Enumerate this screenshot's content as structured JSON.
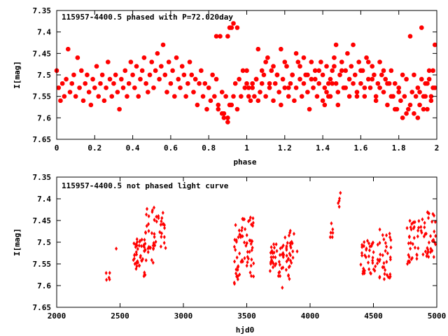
{
  "chart_data": [
    {
      "type": "scatter",
      "title": "115957-4400.5 phased with P=72.020day",
      "xlabel": "phase",
      "ylabel": "I[mag]",
      "xlim": [
        0,
        2
      ],
      "ylim": [
        7.35,
        7.65
      ],
      "y_inverted": true,
      "xticks": [
        "0",
        "0.2",
        "0.4",
        "0.6",
        "0.8",
        "1",
        "1.2",
        "1.4",
        "1.6",
        "1.8",
        "2"
      ],
      "yticks": [
        "7.35",
        "7.4",
        "7.45",
        "7.5",
        "7.55",
        "7.6",
        "7.65"
      ],
      "marker": "filled-octagon",
      "color": "#ff0000",
      "points_per_phase_cycle": [
        [
          0.0,
          7.49
        ],
        [
          0.01,
          7.53
        ],
        [
          0.02,
          7.56
        ],
        [
          0.03,
          7.52
        ],
        [
          0.04,
          7.55
        ],
        [
          0.05,
          7.51
        ],
        [
          0.06,
          7.44
        ],
        [
          0.07,
          7.54
        ],
        [
          0.08,
          7.52
        ],
        [
          0.09,
          7.5
        ],
        [
          0.1,
          7.55
        ],
        [
          0.11,
          7.46
        ],
        [
          0.12,
          7.53
        ],
        [
          0.13,
          7.49
        ],
        [
          0.14,
          7.56
        ],
        [
          0.15,
          7.52
        ],
        [
          0.16,
          7.5
        ],
        [
          0.17,
          7.54
        ],
        [
          0.18,
          7.57
        ],
        [
          0.19,
          7.51
        ],
        [
          0.2,
          7.53
        ],
        [
          0.21,
          7.48
        ],
        [
          0.22,
          7.55
        ],
        [
          0.23,
          7.52
        ],
        [
          0.24,
          7.5
        ],
        [
          0.25,
          7.56
        ],
        [
          0.26,
          7.53
        ],
        [
          0.27,
          7.47
        ],
        [
          0.28,
          7.51
        ],
        [
          0.29,
          7.55
        ],
        [
          0.3,
          7.52
        ],
        [
          0.31,
          7.5
        ],
        [
          0.32,
          7.54
        ],
        [
          0.33,
          7.58
        ],
        [
          0.34,
          7.51
        ],
        [
          0.35,
          7.53
        ],
        [
          0.36,
          7.49
        ],
        [
          0.37,
          7.55
        ],
        [
          0.38,
          7.52
        ],
        [
          0.39,
          7.47
        ],
        [
          0.4,
          7.5
        ],
        [
          0.41,
          7.53
        ],
        [
          0.42,
          7.48
        ],
        [
          0.43,
          7.55
        ],
        [
          0.44,
          7.51
        ],
        [
          0.45,
          7.49
        ],
        [
          0.46,
          7.46
        ],
        [
          0.47,
          7.52
        ],
        [
          0.48,
          7.54
        ],
        [
          0.49,
          7.5
        ],
        [
          0.5,
          7.47
        ],
        [
          0.51,
          7.53
        ],
        [
          0.52,
          7.49
        ],
        [
          0.53,
          7.45
        ],
        [
          0.54,
          7.51
        ],
        [
          0.55,
          7.48
        ],
        [
          0.56,
          7.43
        ],
        [
          0.57,
          7.5
        ],
        [
          0.58,
          7.54
        ],
        [
          0.59,
          7.47
        ],
        [
          0.6,
          7.52
        ],
        [
          0.61,
          7.49
        ],
        [
          0.62,
          7.55
        ],
        [
          0.63,
          7.46
        ],
        [
          0.64,
          7.51
        ],
        [
          0.65,
          7.53
        ],
        [
          0.66,
          7.48
        ],
        [
          0.67,
          7.5
        ],
        [
          0.68,
          7.55
        ],
        [
          0.69,
          7.52
        ],
        [
          0.7,
          7.47
        ],
        [
          0.71,
          7.5
        ],
        [
          0.72,
          7.54
        ],
        [
          0.73,
          7.51
        ],
        [
          0.74,
          7.57
        ],
        [
          0.75,
          7.52
        ],
        [
          0.76,
          7.49
        ],
        [
          0.77,
          7.55
        ],
        [
          0.78,
          7.52
        ],
        [
          0.79,
          7.58
        ],
        [
          0.8,
          7.53
        ],
        [
          0.81,
          7.56
        ],
        [
          0.82,
          7.5
        ],
        [
          0.83,
          7.55
        ],
        [
          0.84,
          7.51
        ],
        [
          0.85,
          7.58
        ],
        [
          0.86,
          7.41
        ],
        [
          0.87,
          7.54
        ],
        [
          0.88,
          7.59
        ],
        [
          0.89,
          7.55
        ],
        [
          0.9,
          7.6
        ],
        [
          0.91,
          7.57
        ],
        [
          0.92,
          7.39
        ],
        [
          0.93,
          7.55
        ],
        [
          0.94,
          7.52
        ],
        [
          0.95,
          7.58
        ],
        [
          0.96,
          7.51
        ],
        [
          0.97,
          7.55
        ],
        [
          0.98,
          7.49
        ],
        [
          0.99,
          7.53
        ]
      ],
      "note_points": [
        [
          0.84,
          7.41
        ],
        [
          0.9,
          7.41
        ],
        [
          0.91,
          7.39
        ],
        [
          0.93,
          7.38
        ],
        [
          0.95,
          7.39
        ],
        [
          0.87,
          7.59
        ],
        [
          0.88,
          7.6
        ],
        [
          0.9,
          7.61
        ],
        [
          0.92,
          7.57
        ],
        [
          0.85,
          7.57
        ],
        [
          1.0,
          7.52
        ],
        [
          1.01,
          7.55
        ],
        [
          1.03,
          7.53
        ],
        [
          1.05,
          7.51
        ],
        [
          1.06,
          7.56
        ],
        [
          1.08,
          7.49
        ],
        [
          1.1,
          7.47
        ],
        [
          1.12,
          7.52
        ],
        [
          1.14,
          7.48
        ],
        [
          1.16,
          7.5
        ],
        [
          1.18,
          7.44
        ],
        [
          1.2,
          7.47
        ],
        [
          1.22,
          7.53
        ],
        [
          1.24,
          7.5
        ],
        [
          1.26,
          7.45
        ],
        [
          1.28,
          7.48
        ],
        [
          1.3,
          7.46
        ],
        [
          1.32,
          7.5
        ],
        [
          1.34,
          7.47
        ],
        [
          1.36,
          7.51
        ],
        [
          1.38,
          7.49
        ],
        [
          1.4,
          7.56
        ],
        [
          1.41,
          7.57
        ],
        [
          1.42,
          7.54
        ],
        [
          1.43,
          7.52
        ],
        [
          1.44,
          7.55
        ],
        [
          1.45,
          7.52
        ],
        [
          1.46,
          7.48
        ],
        [
          1.47,
          7.43
        ],
        [
          1.48,
          7.57
        ],
        [
          1.5,
          7.49
        ],
        [
          1.52,
          7.53
        ],
        [
          1.54,
          7.55
        ],
        [
          1.56,
          7.52
        ],
        [
          1.58,
          7.55
        ],
        [
          1.6,
          7.49
        ],
        [
          1.62,
          7.53
        ],
        [
          1.64,
          7.47
        ],
        [
          1.66,
          7.51
        ],
        [
          1.68,
          7.56
        ],
        [
          1.7,
          7.53
        ],
        [
          1.72,
          7.49
        ],
        [
          1.74,
          7.52
        ],
        [
          1.76,
          7.55
        ],
        [
          1.78,
          7.58
        ],
        [
          1.8,
          7.54
        ],
        [
          1.82,
          7.6
        ],
        [
          1.84,
          7.59
        ],
        [
          1.86,
          7.57
        ],
        [
          1.88,
          7.5
        ],
        [
          1.9,
          7.53
        ],
        [
          1.92,
          7.51
        ],
        [
          1.94,
          7.55
        ],
        [
          1.96,
          7.49
        ],
        [
          1.98,
          7.53
        ],
        [
          1.99,
          7.43
        ],
        [
          1.97,
          7.56
        ],
        [
          1.95,
          7.52
        ],
        [
          1.93,
          7.58
        ],
        [
          1.91,
          7.54
        ]
      ]
    },
    {
      "type": "scatter",
      "title": "115957-4400.5 not phased light curve",
      "xlabel": "hjd0",
      "ylabel": "I[mag]",
      "xlim": [
        2000,
        5000
      ],
      "ylim": [
        7.35,
        7.65
      ],
      "y_inverted": true,
      "xticks": [
        "2000",
        "2500",
        "3000",
        "3500",
        "4000",
        "4500",
        "5000"
      ],
      "yticks": [
        "7.35",
        "7.4",
        "7.45",
        "7.5",
        "7.55",
        "7.6",
        "7.65"
      ],
      "marker": "filled-diamond",
      "color": "#ff0000",
      "clusters": [
        {
          "x": [
            2390,
            2420
          ],
          "y": [
            7.57,
            7.59
          ],
          "n": 5
        },
        {
          "x": [
            2460,
            2480
          ],
          "y": [
            7.51,
            7.52
          ],
          "n": 1
        },
        {
          "x": [
            2600,
            2700
          ],
          "y": [
            7.49,
            7.58
          ],
          "n": 45
        },
        {
          "x": [
            2700,
            2780
          ],
          "y": [
            7.42,
            7.55
          ],
          "n": 30
        },
        {
          "x": [
            2780,
            2860
          ],
          "y": [
            7.43,
            7.52
          ],
          "n": 20
        },
        {
          "x": [
            3400,
            3460
          ],
          "y": [
            7.46,
            7.6
          ],
          "n": 30
        },
        {
          "x": [
            3460,
            3560
          ],
          "y": [
            7.44,
            7.58
          ],
          "n": 40
        },
        {
          "x": [
            3680,
            3760
          ],
          "y": [
            7.5,
            7.58
          ],
          "n": 25
        },
        {
          "x": [
            3760,
            3840
          ],
          "y": [
            7.48,
            7.61
          ],
          "n": 30
        },
        {
          "x": [
            3840,
            3900
          ],
          "y": [
            7.47,
            7.55
          ],
          "n": 15
        },
        {
          "x": [
            4150,
            4180
          ],
          "y": [
            7.45,
            7.49
          ],
          "n": 6
        },
        {
          "x": [
            4220,
            4250
          ],
          "y": [
            7.38,
            7.42
          ],
          "n": 5
        },
        {
          "x": [
            4400,
            4500
          ],
          "y": [
            7.48,
            7.58
          ],
          "n": 35
        },
        {
          "x": [
            4500,
            4640
          ],
          "y": [
            7.47,
            7.59
          ],
          "n": 40
        },
        {
          "x": [
            4760,
            4880
          ],
          "y": [
            7.45,
            7.56
          ],
          "n": 35
        },
        {
          "x": [
            4880,
            5000
          ],
          "y": [
            7.43,
            7.54
          ],
          "n": 35
        }
      ]
    }
  ]
}
